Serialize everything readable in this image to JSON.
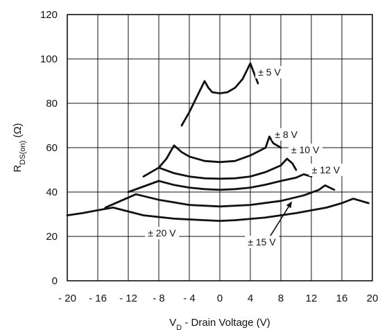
{
  "chart_data": {
    "type": "line",
    "xlabel": "V",
    "xlabel_sub": "D",
    "xlabel_rest": " - Drain Voltage (V)",
    "ylabel": "R",
    "ylabel_sub": "DS(on)",
    "ylabel_rest": " (Ω)",
    "xlim": [
      -20,
      20
    ],
    "ylim": [
      0,
      120
    ],
    "x_ticks": [
      -20,
      -16,
      -12,
      -8,
      -4,
      0,
      4,
      8,
      12,
      16,
      20
    ],
    "x_tick_labels": [
      "- 20",
      "- 16",
      "- 12",
      "- 8",
      "- 4",
      "0",
      "4",
      "8",
      "12",
      "16",
      "20"
    ],
    "y_ticks": [
      0,
      20,
      40,
      60,
      80,
      100,
      120
    ],
    "y_tick_labels": [
      "0",
      "20",
      "40",
      "60",
      "80",
      "100",
      "120"
    ],
    "grid": true,
    "series": [
      {
        "name": "± 5 V",
        "points": [
          [
            -5,
            70
          ],
          [
            -4,
            76
          ],
          [
            -3,
            83
          ],
          [
            -2,
            90
          ],
          [
            -1.5,
            87
          ],
          [
            -1,
            85
          ],
          [
            0,
            84.5
          ],
          [
            1,
            85
          ],
          [
            2,
            87
          ],
          [
            3,
            91
          ],
          [
            4,
            98
          ],
          [
            5,
            89
          ]
        ]
      },
      {
        "name": "± 8 V",
        "points": [
          [
            -8,
            51
          ],
          [
            -7,
            55
          ],
          [
            -6,
            61
          ],
          [
            -5,
            58
          ],
          [
            -4,
            56
          ],
          [
            -2,
            54
          ],
          [
            0,
            53.5
          ],
          [
            2,
            54
          ],
          [
            4,
            56.5
          ],
          [
            6,
            60
          ],
          [
            6.5,
            65
          ],
          [
            7,
            62
          ],
          [
            8,
            60
          ]
        ]
      },
      {
        "name": "± 10 V",
        "points": [
          [
            -10,
            47
          ],
          [
            -9,
            49
          ],
          [
            -8,
            51
          ],
          [
            -6,
            48.5
          ],
          [
            -4,
            47
          ],
          [
            -2,
            46.2
          ],
          [
            0,
            46
          ],
          [
            2,
            46.2
          ],
          [
            4,
            47
          ],
          [
            6,
            49
          ],
          [
            8,
            52
          ],
          [
            8.8,
            55
          ],
          [
            9.5,
            53
          ],
          [
            10,
            50
          ]
        ]
      },
      {
        "name": "± 12 V",
        "points": [
          [
            -12,
            40
          ],
          [
            -10,
            42.5
          ],
          [
            -8,
            45
          ],
          [
            -6,
            43.2
          ],
          [
            -4,
            42
          ],
          [
            -2,
            41.3
          ],
          [
            0,
            41
          ],
          [
            2,
            41.3
          ],
          [
            4,
            42
          ],
          [
            6,
            43.3
          ],
          [
            8,
            45
          ],
          [
            10,
            46.5
          ],
          [
            11,
            48
          ],
          [
            12,
            47
          ]
        ]
      },
      {
        "name": "± 15 V",
        "points": [
          [
            -15,
            33
          ],
          [
            -13,
            36
          ],
          [
            -11,
            39
          ],
          [
            -8,
            36.5
          ],
          [
            -4,
            34.2
          ],
          [
            0,
            33.5
          ],
          [
            4,
            34.2
          ],
          [
            8,
            36
          ],
          [
            11,
            38.5
          ],
          [
            13,
            41
          ],
          [
            13.8,
            43
          ],
          [
            15,
            41
          ]
        ]
      },
      {
        "name": "± 20 V",
        "points": [
          [
            -20,
            29.5
          ],
          [
            -18,
            30.5
          ],
          [
            -16,
            31.8
          ],
          [
            -14,
            33
          ],
          [
            -10,
            29.5
          ],
          [
            -6,
            28
          ],
          [
            -2,
            27.3
          ],
          [
            0,
            27
          ],
          [
            2,
            27.3
          ],
          [
            6,
            28.5
          ],
          [
            10,
            30.5
          ],
          [
            14,
            33
          ],
          [
            16,
            35
          ],
          [
            17.5,
            37
          ],
          [
            18.5,
            36
          ],
          [
            19.5,
            35
          ]
        ]
      }
    ],
    "annotations": [
      {
        "text": "± 5 V",
        "x": 6.5,
        "y": 94
      },
      {
        "text": "± 8 V",
        "x": 8.7,
        "y": 66
      },
      {
        "text": "± 10 V",
        "x": 11.2,
        "y": 59
      },
      {
        "text": "± 12 V",
        "x": 13.9,
        "y": 50
      },
      {
        "text": "± 20 V",
        "x": -7.6,
        "y": 21.5
      },
      {
        "text": "± 15 V",
        "x": 5.5,
        "y": 17.5
      }
    ],
    "arrow": {
      "from": [
        6.5,
        19.5
      ],
      "to": [
        9.4,
        35.5
      ]
    }
  }
}
